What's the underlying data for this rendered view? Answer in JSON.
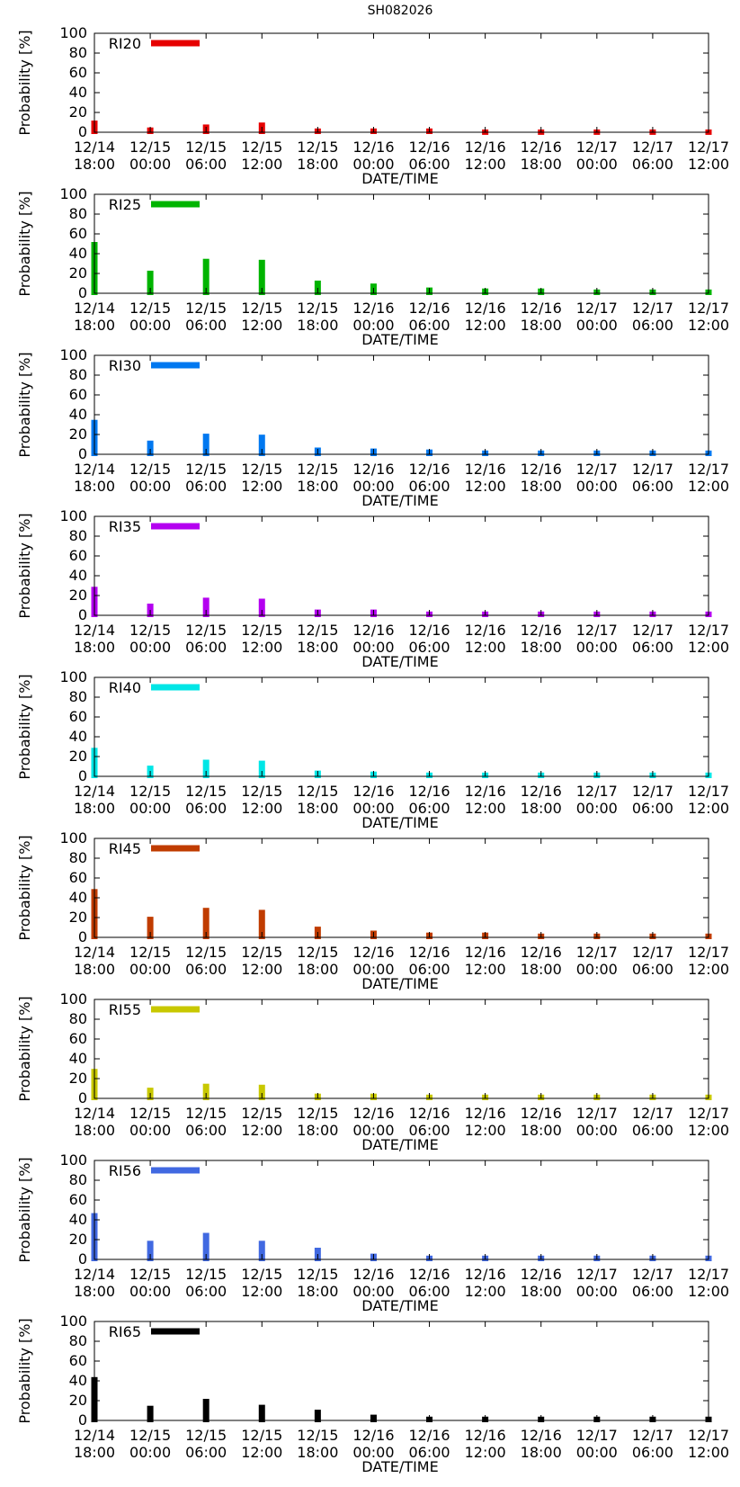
{
  "page_title": "SH082026",
  "chart_data": [
    {
      "type": "bar",
      "title": "",
      "legend": "RI20",
      "color": "#e60000",
      "xlabel": "DATE/TIME",
      "ylabel": "Probability [%]",
      "ylim": [
        0,
        100
      ],
      "yticks": [
        0,
        20,
        40,
        60,
        80,
        100
      ],
      "x_ticks": [
        "12/14 18:00",
        "12/15 00:00",
        "12/15 06:00",
        "12/15 12:00",
        "12/15 18:00",
        "12/16 00:00",
        "12/16 06:00",
        "12/16 12:00",
        "12/16 18:00",
        "12/17 00:00",
        "12/17 06:00",
        "12/17 12:00"
      ],
      "values": [
        10,
        3,
        6,
        8,
        2,
        2,
        2,
        1,
        1,
        1,
        1,
        1
      ]
    },
    {
      "type": "bar",
      "title": "",
      "legend": "RI25",
      "color": "#00b400",
      "xlabel": "DATE/TIME",
      "ylabel": "Probability [%]",
      "ylim": [
        0,
        100
      ],
      "yticks": [
        0,
        20,
        40,
        60,
        80,
        100
      ],
      "x_ticks": [
        "12/14 18:00",
        "12/15 00:00",
        "12/15 06:00",
        "12/15 12:00",
        "12/15 18:00",
        "12/16 00:00",
        "12/16 06:00",
        "12/16 12:00",
        "12/16 18:00",
        "12/17 00:00",
        "12/17 06:00",
        "12/17 12:00"
      ],
      "values": [
        50,
        21,
        33,
        32,
        11,
        8,
        4,
        3,
        3,
        2,
        2,
        2
      ]
    },
    {
      "type": "bar",
      "title": "",
      "legend": "RI30",
      "color": "#0078f0",
      "xlabel": "DATE/TIME",
      "ylabel": "Probability [%]",
      "ylim": [
        0,
        100
      ],
      "yticks": [
        0,
        20,
        40,
        60,
        80,
        100
      ],
      "x_ticks": [
        "12/14 18:00",
        "12/15 00:00",
        "12/15 06:00",
        "12/15 12:00",
        "12/15 18:00",
        "12/16 00:00",
        "12/16 06:00",
        "12/16 12:00",
        "12/16 18:00",
        "12/17 00:00",
        "12/17 06:00",
        "12/17 12:00"
      ],
      "values": [
        33,
        12,
        19,
        18,
        5,
        4,
        3,
        2,
        2,
        2,
        2,
        2
      ]
    },
    {
      "type": "bar",
      "title": "",
      "legend": "RI35",
      "color": "#b400f0",
      "xlabel": "DATE/TIME",
      "ylabel": "Probability [%]",
      "ylim": [
        0,
        100
      ],
      "yticks": [
        0,
        20,
        40,
        60,
        80,
        100
      ],
      "x_ticks": [
        "12/14 18:00",
        "12/15 00:00",
        "12/15 06:00",
        "12/15 12:00",
        "12/15 18:00",
        "12/16 00:00",
        "12/16 06:00",
        "12/16 12:00",
        "12/16 18:00",
        "12/17 00:00",
        "12/17 06:00",
        "12/17 12:00"
      ],
      "values": [
        27,
        10,
        16,
        15,
        4,
        4,
        2,
        2,
        2,
        2,
        2,
        2
      ]
    },
    {
      "type": "bar",
      "title": "",
      "legend": "RI40",
      "color": "#00e6e6",
      "xlabel": "DATE/TIME",
      "ylabel": "Probability [%]",
      "ylim": [
        0,
        100
      ],
      "yticks": [
        0,
        20,
        40,
        60,
        80,
        100
      ],
      "x_ticks": [
        "12/14 18:00",
        "12/15 00:00",
        "12/15 06:00",
        "12/15 12:00",
        "12/15 18:00",
        "12/16 00:00",
        "12/16 06:00",
        "12/16 12:00",
        "12/16 18:00",
        "12/17 00:00",
        "12/17 06:00",
        "12/17 12:00"
      ],
      "values": [
        27,
        9,
        15,
        14,
        4,
        3,
        2,
        2,
        2,
        2,
        2,
        2
      ]
    },
    {
      "type": "bar",
      "title": "",
      "legend": "RI45",
      "color": "#c03c00",
      "xlabel": "DATE/TIME",
      "ylabel": "Probability [%]",
      "ylim": [
        0,
        100
      ],
      "yticks": [
        0,
        20,
        40,
        60,
        80,
        100
      ],
      "x_ticks": [
        "12/14 18:00",
        "12/15 00:00",
        "12/15 06:00",
        "12/15 12:00",
        "12/15 18:00",
        "12/16 00:00",
        "12/16 06:00",
        "12/16 12:00",
        "12/16 18:00",
        "12/17 00:00",
        "12/17 06:00",
        "12/17 12:00"
      ],
      "values": [
        47,
        19,
        28,
        26,
        9,
        5,
        3,
        3,
        2,
        2,
        2,
        2
      ]
    },
    {
      "type": "bar",
      "title": "",
      "legend": "RI55",
      "color": "#c8c800",
      "xlabel": "DATE/TIME",
      "ylabel": "Probability [%]",
      "ylim": [
        0,
        100
      ],
      "yticks": [
        0,
        20,
        40,
        60,
        80,
        100
      ],
      "x_ticks": [
        "12/14 18:00",
        "12/15 00:00",
        "12/15 06:00",
        "12/15 12:00",
        "12/15 18:00",
        "12/16 00:00",
        "12/16 06:00",
        "12/16 12:00",
        "12/16 18:00",
        "12/17 00:00",
        "12/17 06:00",
        "12/17 12:00"
      ],
      "values": [
        28,
        9,
        13,
        12,
        3,
        3,
        2,
        2,
        2,
        2,
        2,
        2
      ]
    },
    {
      "type": "bar",
      "title": "",
      "legend": "RI56",
      "color": "#4169e1",
      "xlabel": "DATE/TIME",
      "ylabel": "Probability [%]",
      "ylim": [
        0,
        100
      ],
      "yticks": [
        0,
        20,
        40,
        60,
        80,
        100
      ],
      "x_ticks": [
        "12/14 18:00",
        "12/15 00:00",
        "12/15 06:00",
        "12/15 12:00",
        "12/15 18:00",
        "12/16 00:00",
        "12/16 06:00",
        "12/16 12:00",
        "12/16 18:00",
        "12/17 00:00",
        "12/17 06:00",
        "12/17 12:00"
      ],
      "values": [
        45,
        17,
        25,
        17,
        10,
        4,
        2,
        2,
        2,
        2,
        2,
        2
      ]
    },
    {
      "type": "bar",
      "title": "",
      "legend": "RI65",
      "color": "#000000",
      "xlabel": "DATE/TIME",
      "ylabel": "Probability [%]",
      "ylim": [
        0,
        100
      ],
      "yticks": [
        0,
        20,
        40,
        60,
        80,
        100
      ],
      "x_ticks": [
        "12/14 18:00",
        "12/15 00:00",
        "12/15 06:00",
        "12/15 12:00",
        "12/15 18:00",
        "12/16 00:00",
        "12/16 06:00",
        "12/16 12:00",
        "12/16 18:00",
        "12/17 00:00",
        "12/17 06:00",
        "12/17 12:00"
      ],
      "values": [
        42,
        13,
        20,
        14,
        9,
        4,
        2,
        2,
        2,
        2,
        2,
        2
      ]
    }
  ]
}
